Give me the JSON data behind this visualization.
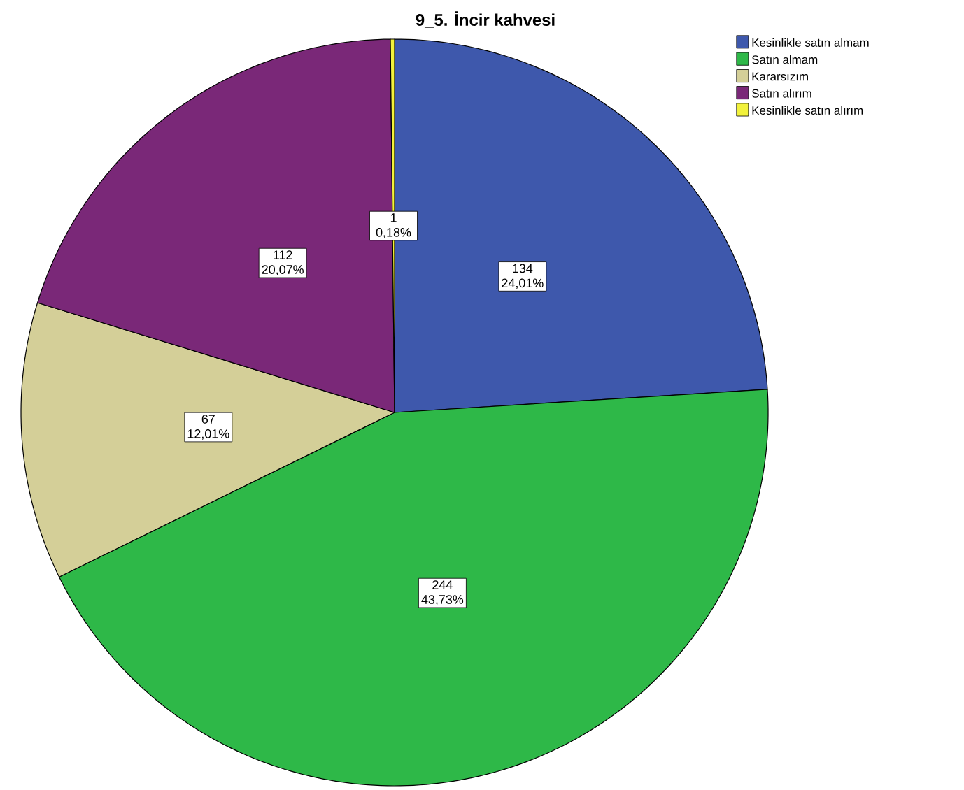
{
  "chart_data": {
    "type": "pie",
    "title": "9_5. İncir kahvesi",
    "categories": [
      "Kesinlikle satın almam",
      "Satın almam",
      "Kararsızım",
      "Satın alırım",
      "Kesinlikle satın alırım"
    ],
    "values": [
      134,
      244,
      67,
      112,
      1
    ],
    "colors": [
      "#3e58ac",
      "#2eb848",
      "#d4cf98",
      "#7a2878",
      "#f2f23c"
    ],
    "value_labels": [
      "134 24,01%",
      "244 43,73%",
      "67 12,01%",
      "112 20,07%",
      "1 0,18%"
    ],
    "legend": "top right"
  }
}
